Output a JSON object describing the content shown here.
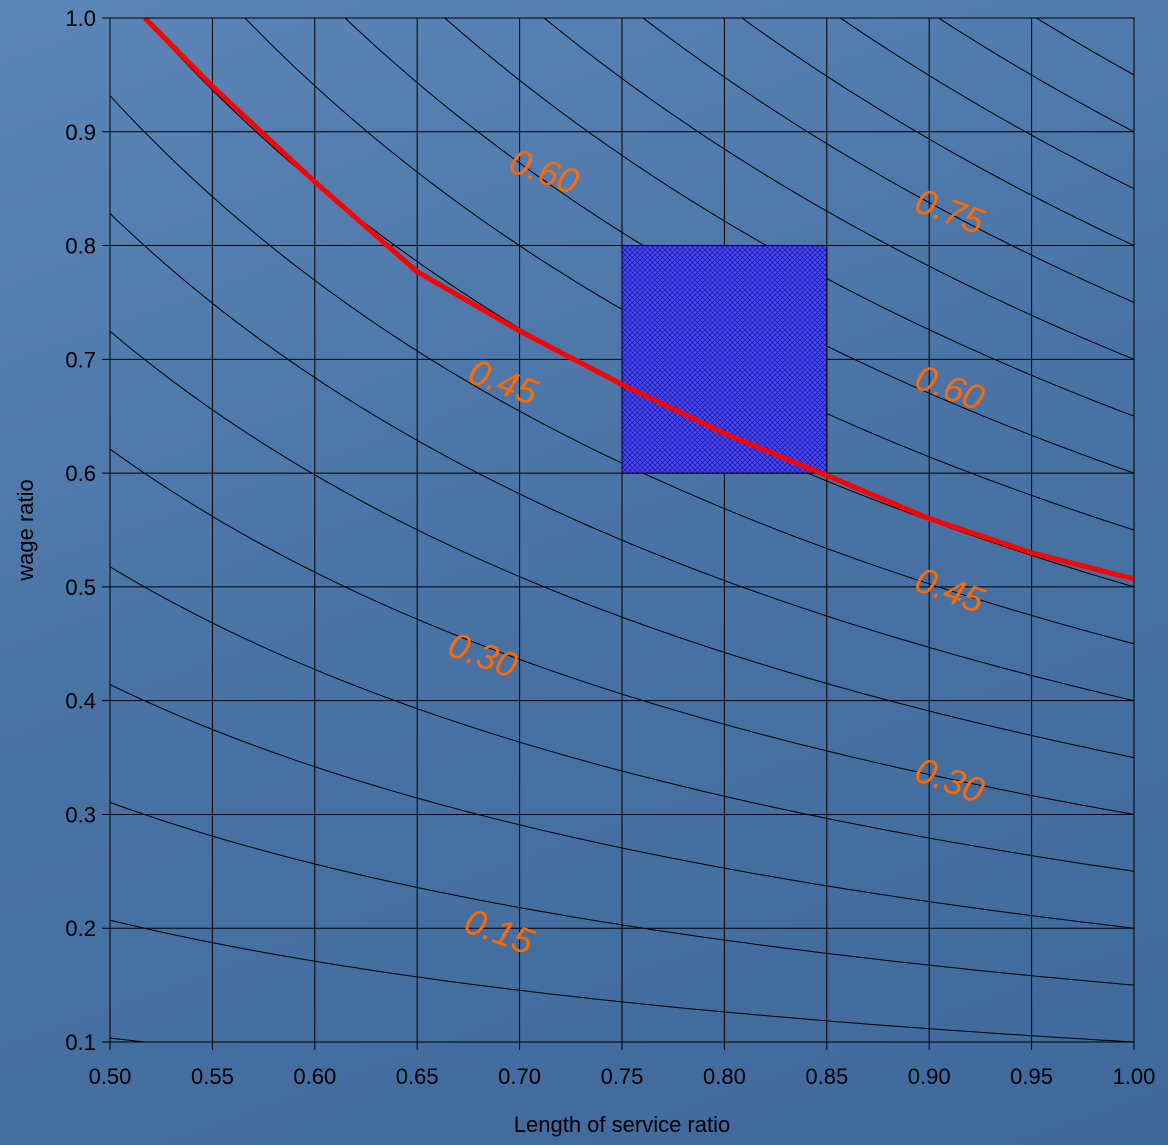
{
  "chart_data": {
    "type": "line",
    "xlabel": "Length of service ratio",
    "ylabel": "wage ratio",
    "xlim": [
      0.5,
      1.0
    ],
    "ylim": [
      0.1,
      1.0
    ],
    "x_ticks": [
      "0.50",
      "0.55",
      "0.60",
      "0.65",
      "0.70",
      "0.75",
      "0.80",
      "0.85",
      "0.90",
      "0.95",
      "1.00"
    ],
    "y_ticks": [
      "0.1",
      "0.2",
      "0.3",
      "0.4",
      "0.5",
      "0.6",
      "0.7",
      "0.8",
      "0.9",
      "1.0"
    ],
    "grid": true,
    "contour_function": "replacement ratio = wage ratio × length of service ratio (approx.)",
    "contour_levels": [
      0.05,
      0.1,
      0.15,
      0.2,
      0.25,
      0.3,
      0.35,
      0.4,
      0.45,
      0.5,
      0.55,
      0.6,
      0.65,
      0.7,
      0.75,
      0.8,
      0.85,
      0.9,
      0.95
    ],
    "contour_labels": [
      {
        "text": "0.15",
        "x": 0.688,
        "y": 0.187
      },
      {
        "text": "0.30",
        "x": 0.68,
        "y": 0.43
      },
      {
        "text": "0.45",
        "x": 0.69,
        "y": 0.67
      },
      {
        "text": "0.60",
        "x": 0.71,
        "y": 0.855
      },
      {
        "text": "0.30",
        "x": 0.908,
        "y": 0.32
      },
      {
        "text": "0.45",
        "x": 0.908,
        "y": 0.487
      },
      {
        "text": "0.60",
        "x": 0.908,
        "y": 0.665
      },
      {
        "text": "0.75",
        "x": 0.908,
        "y": 0.82
      }
    ],
    "target_curve": {
      "color": "#ff0000",
      "points": [
        [
          0.517,
          1.0
        ],
        [
          0.55,
          0.94
        ],
        [
          0.6,
          0.856
        ],
        [
          0.65,
          0.777
        ],
        [
          0.7,
          0.725
        ],
        [
          0.75,
          0.678
        ],
        [
          0.8,
          0.635
        ],
        [
          0.85,
          0.598
        ],
        [
          0.9,
          0.56
        ],
        [
          0.95,
          0.53
        ],
        [
          1.0,
          0.507
        ]
      ]
    },
    "highlight_region": {
      "x": [
        0.75,
        0.85
      ],
      "y": [
        0.6,
        0.8
      ],
      "color": "#3a3aff"
    }
  }
}
